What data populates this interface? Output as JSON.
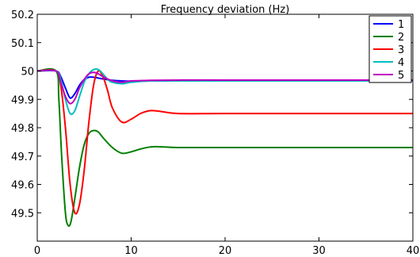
{
  "chart_data": {
    "type": "line",
    "title": "Frequency deviation (Hz)",
    "xlabel": "",
    "ylabel": "",
    "xlim": [
      0,
      40
    ],
    "ylim": [
      49.4,
      50.2
    ],
    "xticks": [
      0,
      10,
      20,
      30,
      40
    ],
    "yticks": [
      49.5,
      49.6,
      49.7,
      49.8,
      49.9,
      50,
      50.1,
      50.2
    ],
    "xtick_labels": [
      "0",
      "10",
      "20",
      "30",
      "40"
    ],
    "ytick_labels": [
      "49.5",
      "49.6",
      "49.7",
      "49.8",
      "49.9",
      "50",
      "50.1",
      "50.2"
    ],
    "grid": false,
    "legend_position": "top-right",
    "series": [
      {
        "name": "1",
        "color": "#0000ff",
        "x": [
          0,
          2,
          2.5,
          3,
          3.5,
          4,
          4.5,
          5,
          5.5,
          6,
          6.5,
          7,
          8,
          9,
          10,
          12,
          15,
          20,
          30,
          40
        ],
        "y": [
          50,
          50,
          49.98,
          49.94,
          49.905,
          49.92,
          49.95,
          49.97,
          49.978,
          49.978,
          49.975,
          49.972,
          49.967,
          49.965,
          49.964,
          49.965,
          49.965,
          49.965,
          49.965,
          49.965
        ]
      },
      {
        "name": "2",
        "color": "#008000",
        "x": [
          0,
          2,
          2.3,
          2.6,
          3,
          3.3,
          3.6,
          4,
          4.5,
          5,
          5.5,
          6,
          6.5,
          7,
          8,
          9,
          10,
          11,
          12,
          13,
          15,
          20,
          30,
          40
        ],
        "y": [
          50,
          50,
          49.9,
          49.7,
          49.5,
          49.455,
          49.47,
          49.55,
          49.66,
          49.74,
          49.78,
          49.79,
          49.785,
          49.765,
          49.73,
          49.71,
          49.715,
          49.725,
          49.732,
          49.733,
          49.73,
          49.73,
          49.73,
          49.73
        ]
      },
      {
        "name": "3",
        "color": "#ff0000",
        "x": [
          0,
          2,
          2.5,
          3,
          3.5,
          4,
          4.5,
          5,
          5.5,
          6,
          6.5,
          7,
          7.5,
          8,
          9,
          10,
          11,
          12,
          13,
          15,
          20,
          30,
          40
        ],
        "y": [
          50,
          50,
          49.95,
          49.8,
          49.6,
          49.5,
          49.53,
          49.65,
          49.82,
          49.95,
          50,
          49.98,
          49.93,
          49.87,
          49.82,
          49.83,
          49.85,
          49.86,
          49.858,
          49.85,
          49.85,
          49.85,
          49.85
        ]
      },
      {
        "name": "4",
        "color": "#00bfbf",
        "x": [
          0,
          2,
          2.5,
          3,
          3.5,
          4,
          4.5,
          5,
          5.5,
          6,
          6.5,
          7,
          7.5,
          8,
          9,
          10,
          12,
          15,
          20,
          30,
          40
        ],
        "y": [
          50,
          50,
          49.97,
          49.9,
          49.85,
          49.86,
          49.91,
          49.96,
          49.99,
          50.005,
          50.005,
          49.99,
          49.97,
          49.96,
          49.955,
          49.96,
          49.965,
          49.965,
          49.965,
          49.965,
          49.965
        ]
      },
      {
        "name": "5",
        "color": "#bf00bf",
        "x": [
          0,
          2,
          2.5,
          3,
          3.5,
          4,
          4.5,
          5,
          5.5,
          6,
          6.5,
          7,
          8,
          9,
          10,
          12,
          15,
          20,
          30,
          40
        ],
        "y": [
          50,
          50,
          49.96,
          49.91,
          49.885,
          49.9,
          49.94,
          49.97,
          49.99,
          49.995,
          49.99,
          49.98,
          49.965,
          49.96,
          49.965,
          49.967,
          49.968,
          49.968,
          49.968,
          49.968
        ]
      }
    ]
  }
}
